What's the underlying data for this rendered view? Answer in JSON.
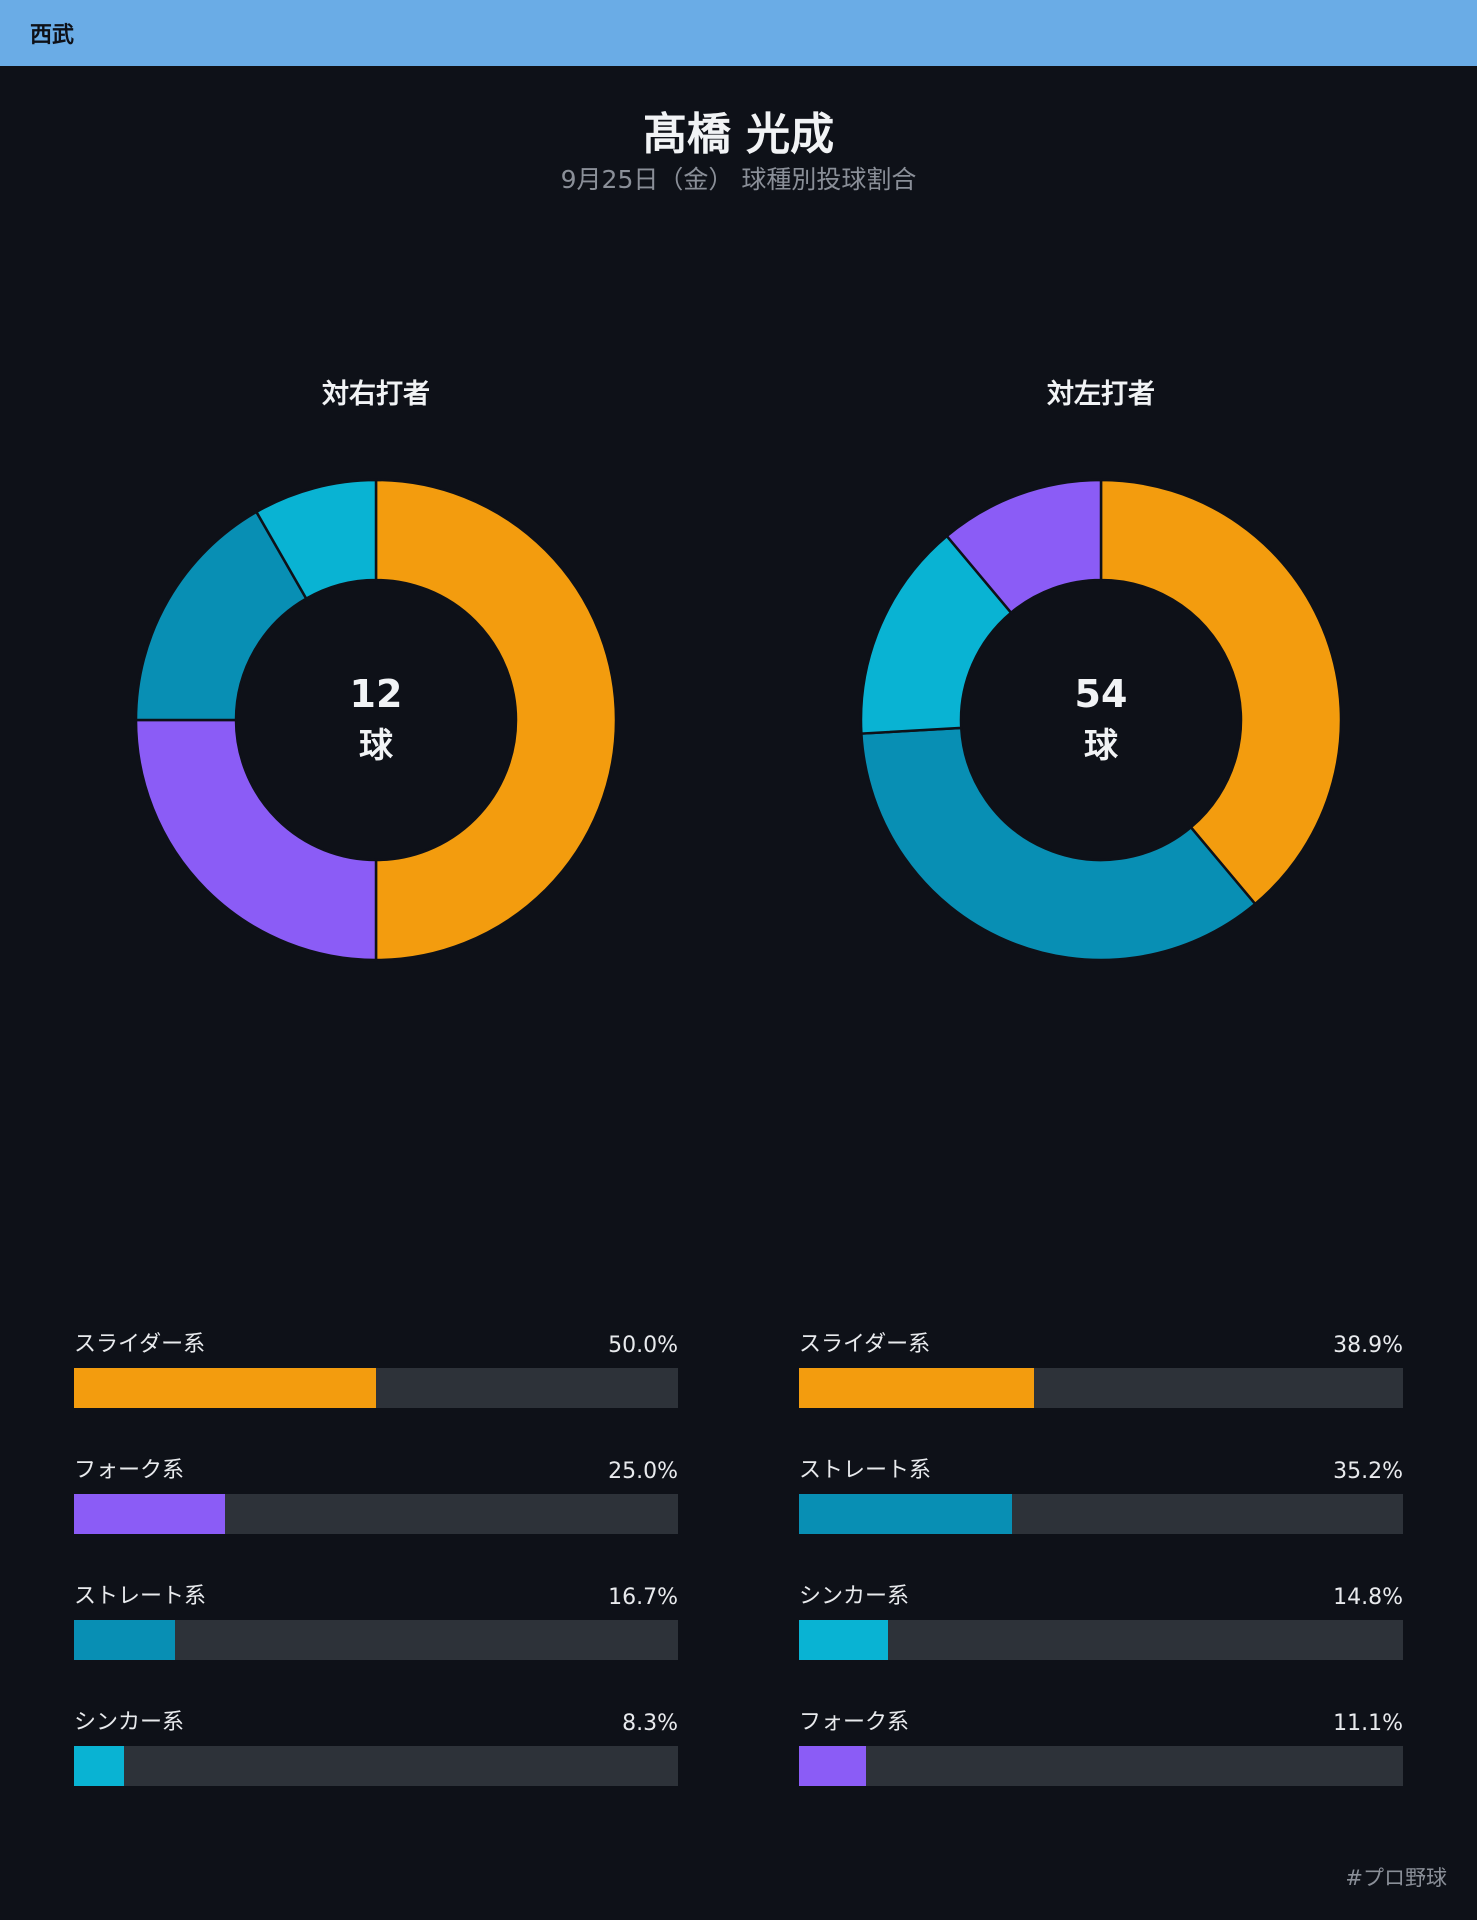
{
  "header": {
    "team": "西武"
  },
  "title": "髙橋 光成",
  "subtitle": "9月25日（金） 球種別投球割合",
  "footer": {
    "hashtag": "#プロ野球"
  },
  "chart_data": [
    {
      "type": "pie",
      "title": "対右打者",
      "center_value": "12",
      "center_unit": "球",
      "categories": [
        "スライダー系",
        "フォーク系",
        "ストレート系",
        "シンカー系"
      ],
      "values": [
        50.0,
        25.0,
        16.7,
        8.3
      ],
      "value_labels": [
        "50.0%",
        "25.0%",
        "16.7%",
        "8.3%"
      ],
      "colors": [
        "#f39c0e",
        "#8b5cf6",
        "#088fb4",
        "#09b3d3"
      ]
    },
    {
      "type": "pie",
      "title": "対左打者",
      "center_value": "54",
      "center_unit": "球",
      "categories": [
        "スライダー系",
        "ストレート系",
        "シンカー系",
        "フォーク系"
      ],
      "values": [
        38.9,
        35.2,
        14.8,
        11.1
      ],
      "value_labels": [
        "38.9%",
        "35.2%",
        "14.8%",
        "11.1%"
      ],
      "colors": [
        "#f39c0e",
        "#088fb4",
        "#09b3d3",
        "#8b5cf6"
      ]
    }
  ],
  "colors": {
    "background": "#0e1118",
    "header": "#6aace6",
    "track": "#2d3239"
  }
}
